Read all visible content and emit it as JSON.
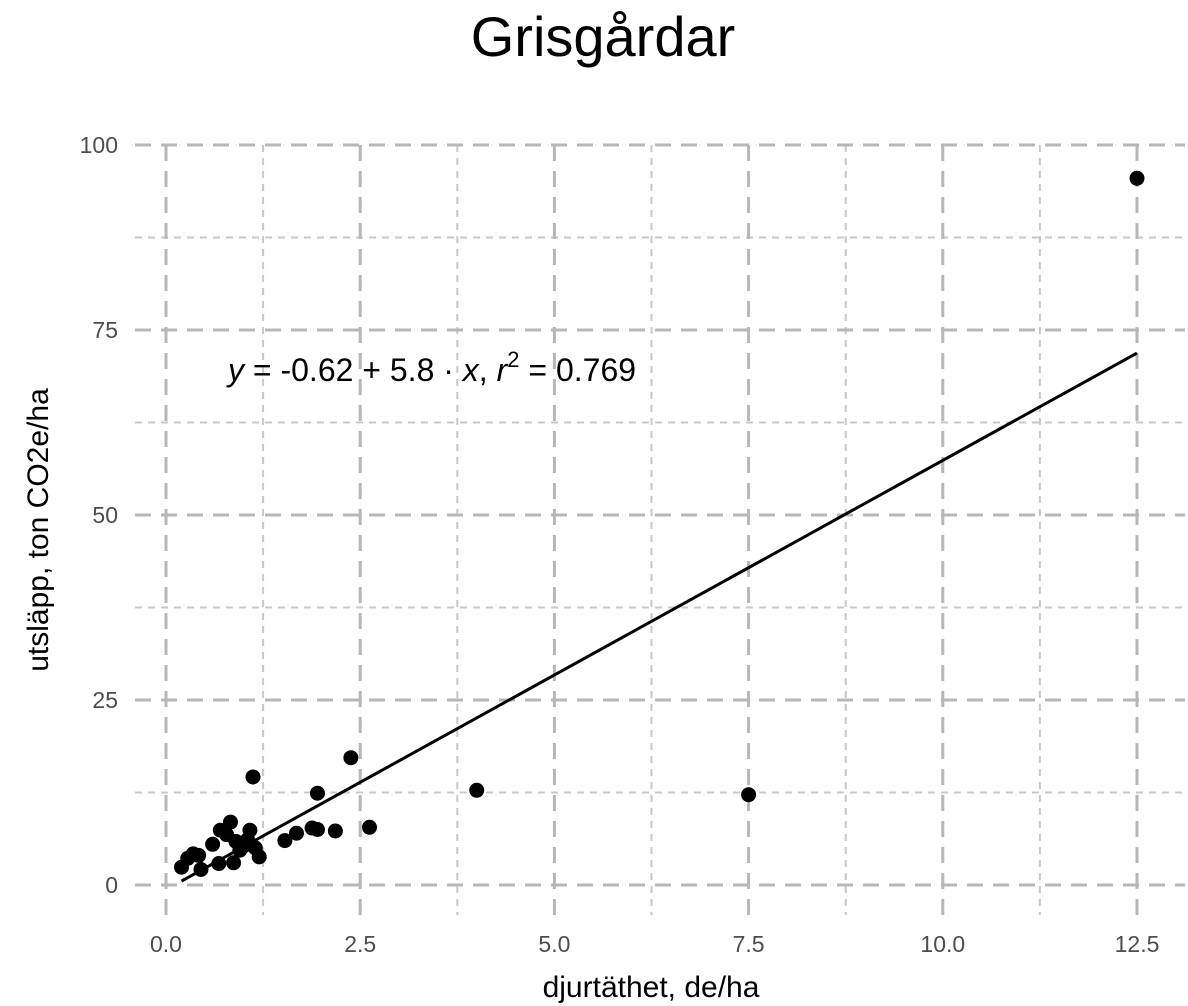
{
  "chart_data": {
    "type": "scatter",
    "title": "Grisgårdar",
    "xlabel": "djurtäthet, de/ha",
    "ylabel": "utsläpp, ton CO2e/ha",
    "xlim": [
      0.0,
      12.5
    ],
    "ylim": [
      0,
      100
    ],
    "x_ticks": [
      0.0,
      2.5,
      5.0,
      7.5,
      10.0,
      12.5
    ],
    "x_tick_labels": [
      "0.0",
      "2.5",
      "5.0",
      "7.5",
      "10.0",
      "12.5"
    ],
    "y_ticks": [
      0,
      25,
      50,
      75,
      100
    ],
    "y_tick_labels": [
      "0",
      "25",
      "50",
      "75",
      "100"
    ],
    "grid": true,
    "grid_style": "dashed",
    "marker_color": "#000000",
    "points": [
      {
        "x": 0.2,
        "y": 2.4
      },
      {
        "x": 0.28,
        "y": 3.6
      },
      {
        "x": 0.35,
        "y": 4.2
      },
      {
        "x": 0.42,
        "y": 4.0
      },
      {
        "x": 0.45,
        "y": 2.1
      },
      {
        "x": 0.6,
        "y": 5.5
      },
      {
        "x": 0.68,
        "y": 2.9
      },
      {
        "x": 0.7,
        "y": 7.4
      },
      {
        "x": 0.78,
        "y": 6.8
      },
      {
        "x": 0.83,
        "y": 8.5
      },
      {
        "x": 0.87,
        "y": 3.0
      },
      {
        "x": 0.9,
        "y": 5.9
      },
      {
        "x": 0.95,
        "y": 4.7
      },
      {
        "x": 1.0,
        "y": 5.3
      },
      {
        "x": 1.05,
        "y": 6.1
      },
      {
        "x": 1.08,
        "y": 7.4
      },
      {
        "x": 1.12,
        "y": 14.6
      },
      {
        "x": 1.15,
        "y": 5.0
      },
      {
        "x": 1.2,
        "y": 3.8
      },
      {
        "x": 1.53,
        "y": 6.0
      },
      {
        "x": 1.68,
        "y": 7.0
      },
      {
        "x": 1.88,
        "y": 7.7
      },
      {
        "x": 1.95,
        "y": 7.5
      },
      {
        "x": 1.95,
        "y": 12.4
      },
      {
        "x": 2.18,
        "y": 7.3
      },
      {
        "x": 2.38,
        "y": 17.2
      },
      {
        "x": 2.62,
        "y": 7.8
      },
      {
        "x": 4.0,
        "y": 12.8
      },
      {
        "x": 7.5,
        "y": 12.2
      },
      {
        "x": 12.5,
        "y": 95.5
      }
    ],
    "regression": {
      "intercept": -0.62,
      "slope": 5.8,
      "x_range": [
        0.2,
        12.5
      ],
      "label_y": "y",
      "label_mid": " = -0.62 + 5.8 · ",
      "label_x": "x",
      "label_comma": ",  ",
      "label_r": "r",
      "label_sup": "2",
      "label_rhs": " = 0.769"
    }
  }
}
